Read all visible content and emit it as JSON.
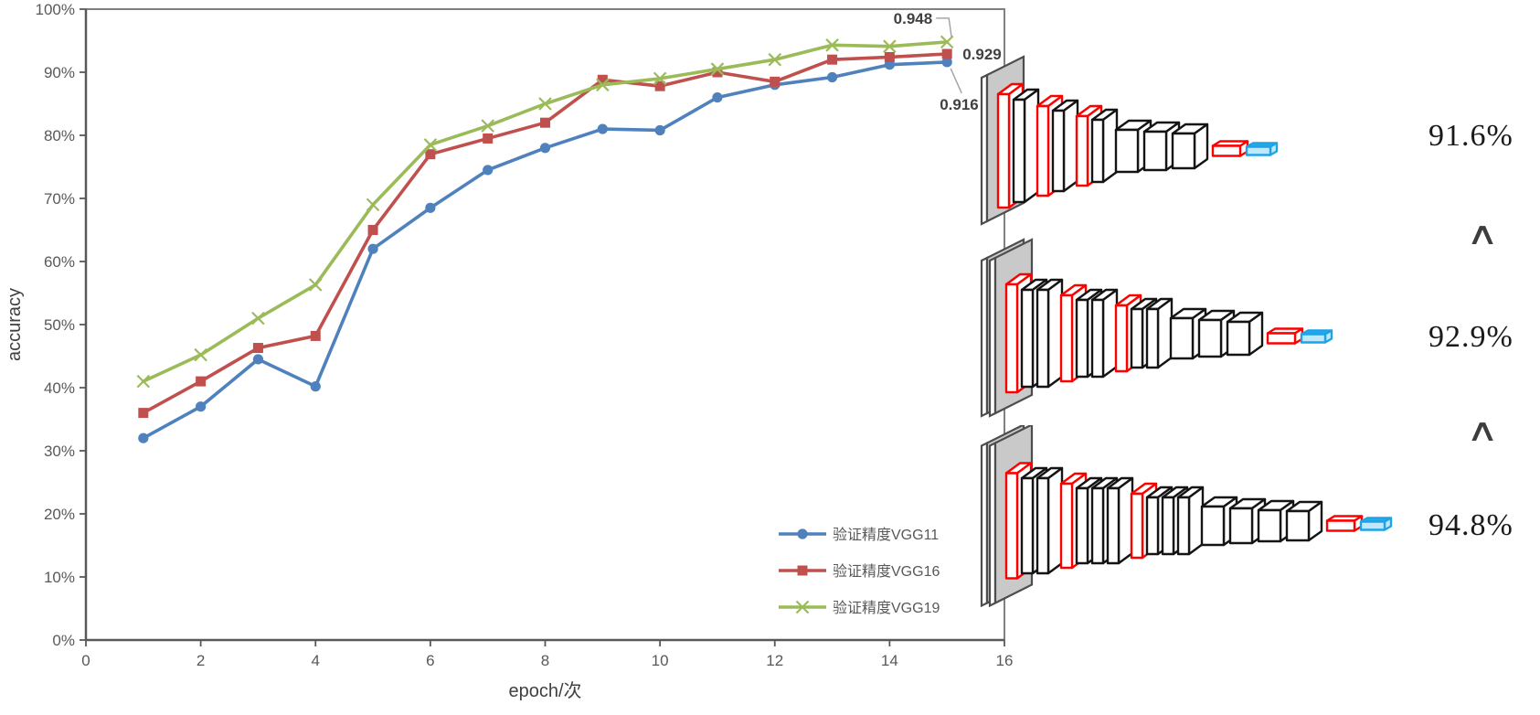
{
  "chart": {
    "ylabel": "accuracy",
    "xlabel": "epoch/次",
    "x_ticks": [
      0,
      2,
      4,
      6,
      8,
      10,
      12,
      14,
      16
    ],
    "y_ticks": [
      "0%",
      "10%",
      "20%",
      "30%",
      "40%",
      "50%",
      "60%",
      "70%",
      "80%",
      "90%",
      "100%"
    ],
    "axis_color": "#595959",
    "border_color": "#808080",
    "label_color": "#404040",
    "tick_text_color": "#595959",
    "data_label_color": "#404040",
    "leader_color": "#a6a6a6"
  },
  "chart_data": {
    "type": "line",
    "title": "",
    "xlabel": "epoch/次",
    "ylabel": "accuracy",
    "x": [
      1,
      2,
      3,
      4,
      5,
      6,
      7,
      8,
      9,
      10,
      11,
      12,
      13,
      14,
      15
    ],
    "xlim": [
      0,
      16
    ],
    "ylim_percent": [
      0,
      100
    ],
    "grid": false,
    "legend_position": "inside-bottom-right",
    "series": [
      {
        "name": "验证精度VGG11",
        "color": "#4F81BD",
        "marker": "circle",
        "values_percent": [
          32,
          37,
          44.5,
          40.2,
          62,
          68.5,
          74.5,
          78,
          81,
          80.8,
          86,
          88,
          89.2,
          91.2,
          91.6
        ],
        "end_label": "0.916"
      },
      {
        "name": "验证精度VGG16",
        "color": "#C0504D",
        "marker": "square",
        "values_percent": [
          36,
          41,
          46.3,
          48.2,
          65,
          77,
          79.5,
          82,
          88.8,
          87.8,
          90,
          88.5,
          92,
          92.4,
          92.9
        ],
        "end_label": "0.929"
      },
      {
        "name": "验证精度VGG19",
        "color": "#9BBB59",
        "marker": "x",
        "values_percent": [
          41,
          45.2,
          51,
          56.3,
          69,
          78.5,
          81.5,
          85,
          88,
          89,
          90.5,
          92,
          94.3,
          94.1,
          94.8
        ],
        "end_label": "0.948"
      }
    ]
  },
  "right_panel": {
    "less_than_symbol": "∧",
    "colors": {
      "conv_outline": "#FF0000",
      "pool_outline": "#141414",
      "input_fill": "#C9C9C9",
      "fc_red": "#FF0000",
      "fc_blue": "#29ABE2"
    },
    "networks": [
      {
        "name": "VGG11",
        "accuracy": "91.6%",
        "layers": [
          [
            "plate",
            160
          ],
          [
            "R",
            124
          ],
          [
            "K",
            112
          ],
          [
            "R",
            98
          ],
          [
            "K",
            88
          ],
          [
            "R",
            76
          ],
          [
            "K",
            68
          ],
          [
            "C",
            46
          ],
          [
            "C",
            42
          ],
          [
            "C",
            38
          ],
          [
            "fcR",
            11
          ],
          [
            "fcB",
            9
          ]
        ]
      },
      {
        "name": "VGG16",
        "accuracy": "92.9%",
        "layers": [
          [
            "plate",
            170
          ],
          [
            "plate",
            170
          ],
          [
            "R",
            118
          ],
          [
            "K",
            106
          ],
          [
            "K",
            106
          ],
          [
            "R",
            94
          ],
          [
            "K",
            84
          ],
          [
            "K",
            84
          ],
          [
            "R",
            72
          ],
          [
            "K",
            64
          ],
          [
            "K",
            64
          ],
          [
            "C",
            44
          ],
          [
            "C",
            40
          ],
          [
            "C",
            36
          ],
          [
            "fcR",
            11
          ],
          [
            "fcB",
            9
          ]
        ]
      },
      {
        "name": "VGG19",
        "accuracy": "94.8%",
        "layers": [
          [
            "plate",
            175
          ],
          [
            "plate",
            175
          ],
          [
            "R",
            115
          ],
          [
            "K",
            104
          ],
          [
            "K",
            104
          ],
          [
            "R",
            92
          ],
          [
            "K",
            82
          ],
          [
            "K",
            82
          ],
          [
            "K",
            82
          ],
          [
            "R",
            70
          ],
          [
            "K",
            62
          ],
          [
            "K",
            62
          ],
          [
            "K",
            62
          ],
          [
            "C",
            42
          ],
          [
            "C",
            38
          ],
          [
            "C",
            34
          ],
          [
            "C",
            32
          ],
          [
            "fcR",
            11
          ],
          [
            "fcB",
            9
          ]
        ]
      }
    ]
  }
}
